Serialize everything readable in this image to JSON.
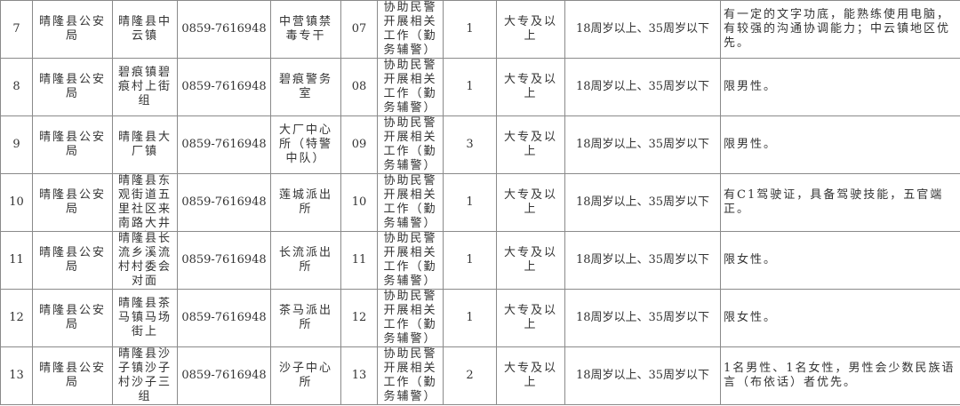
{
  "rows": [
    {
      "no": "7",
      "unit": "晴隆县公安局",
      "location": "晴隆县中云镇",
      "phone": "0859-7616948",
      "dept": "中营镇禁毒专干",
      "code": "07",
      "duty": "协助民警开展相关工作（勤务辅警）",
      "count": "1",
      "education": "大专及以上",
      "age": "18周岁以上、35周岁以下",
      "requirement": "有一定的文字功底，能熟练使用电脑，有较强的沟通协调能力；中云镇地区优先。"
    },
    {
      "no": "8",
      "unit": "晴隆县公安局",
      "location": "碧痕镇碧痕村上街组",
      "phone": "0859-7616948",
      "dept": "碧痕警务室",
      "code": "08",
      "duty": "协助民警开展相关工作（勤务辅警）",
      "count": "1",
      "education": "大专及以上",
      "age": "18周岁以上、35周岁以下",
      "requirement": "限男性。"
    },
    {
      "no": "9",
      "unit": "晴隆县公安局",
      "location": "晴隆县大厂镇",
      "phone": "0859-7616948",
      "dept": "大厂中心所（特警中队）",
      "code": "09",
      "duty": "协助民警开展相关工作（勤务辅警）",
      "count": "3",
      "education": "大专及以上",
      "age": "18周岁以上、35周岁以下",
      "requirement": "限男性。"
    },
    {
      "no": "10",
      "unit": "晴隆县公安局",
      "location": "晴隆县东观街道五里社区来南路大井湾",
      "phone": "0859-7616948",
      "dept": "莲城派出所",
      "code": "10",
      "duty": "协助民警开展相关工作（勤务辅警）",
      "count": "1",
      "education": "大专及以上",
      "age": "18周岁以上、35周岁以下",
      "requirement": "有C1驾驶证，具备驾驶技能，五官端正。"
    },
    {
      "no": "11",
      "unit": "晴隆县公安局",
      "location": "晴隆县长流乡溪流村村委会对面",
      "phone": "0859-7616948",
      "dept": "长流派出所",
      "code": "11",
      "duty": "协助民警开展相关工作（勤务辅警）",
      "count": "1",
      "education": "大专及以上",
      "age": "18周岁以上、35周岁以下",
      "requirement": "限女性。"
    },
    {
      "no": "12",
      "unit": "晴隆县公安局",
      "location": "晴隆县茶马镇马场街上",
      "phone": "0859-7616948",
      "dept": "茶马派出所",
      "code": "12",
      "duty": "协助民警开展相关工作（勤务辅警）",
      "count": "1",
      "education": "大专及以上",
      "age": "18周岁以上、35周岁以下",
      "requirement": "限女性。"
    },
    {
      "no": "13",
      "unit": "晴隆县公安局",
      "location": "晴隆县沙子镇沙子村沙子三组",
      "phone": "0859-7616948",
      "dept": "沙子中心所",
      "code": "13",
      "duty": "协助民警开展相关工作（勤务辅警）",
      "count": "2",
      "education": "大专及以上",
      "age": "18周岁以上、35周岁以下",
      "requirement": "1名男性、1名女性，男性会少数民族语言（布依话）者优先。"
    }
  ]
}
